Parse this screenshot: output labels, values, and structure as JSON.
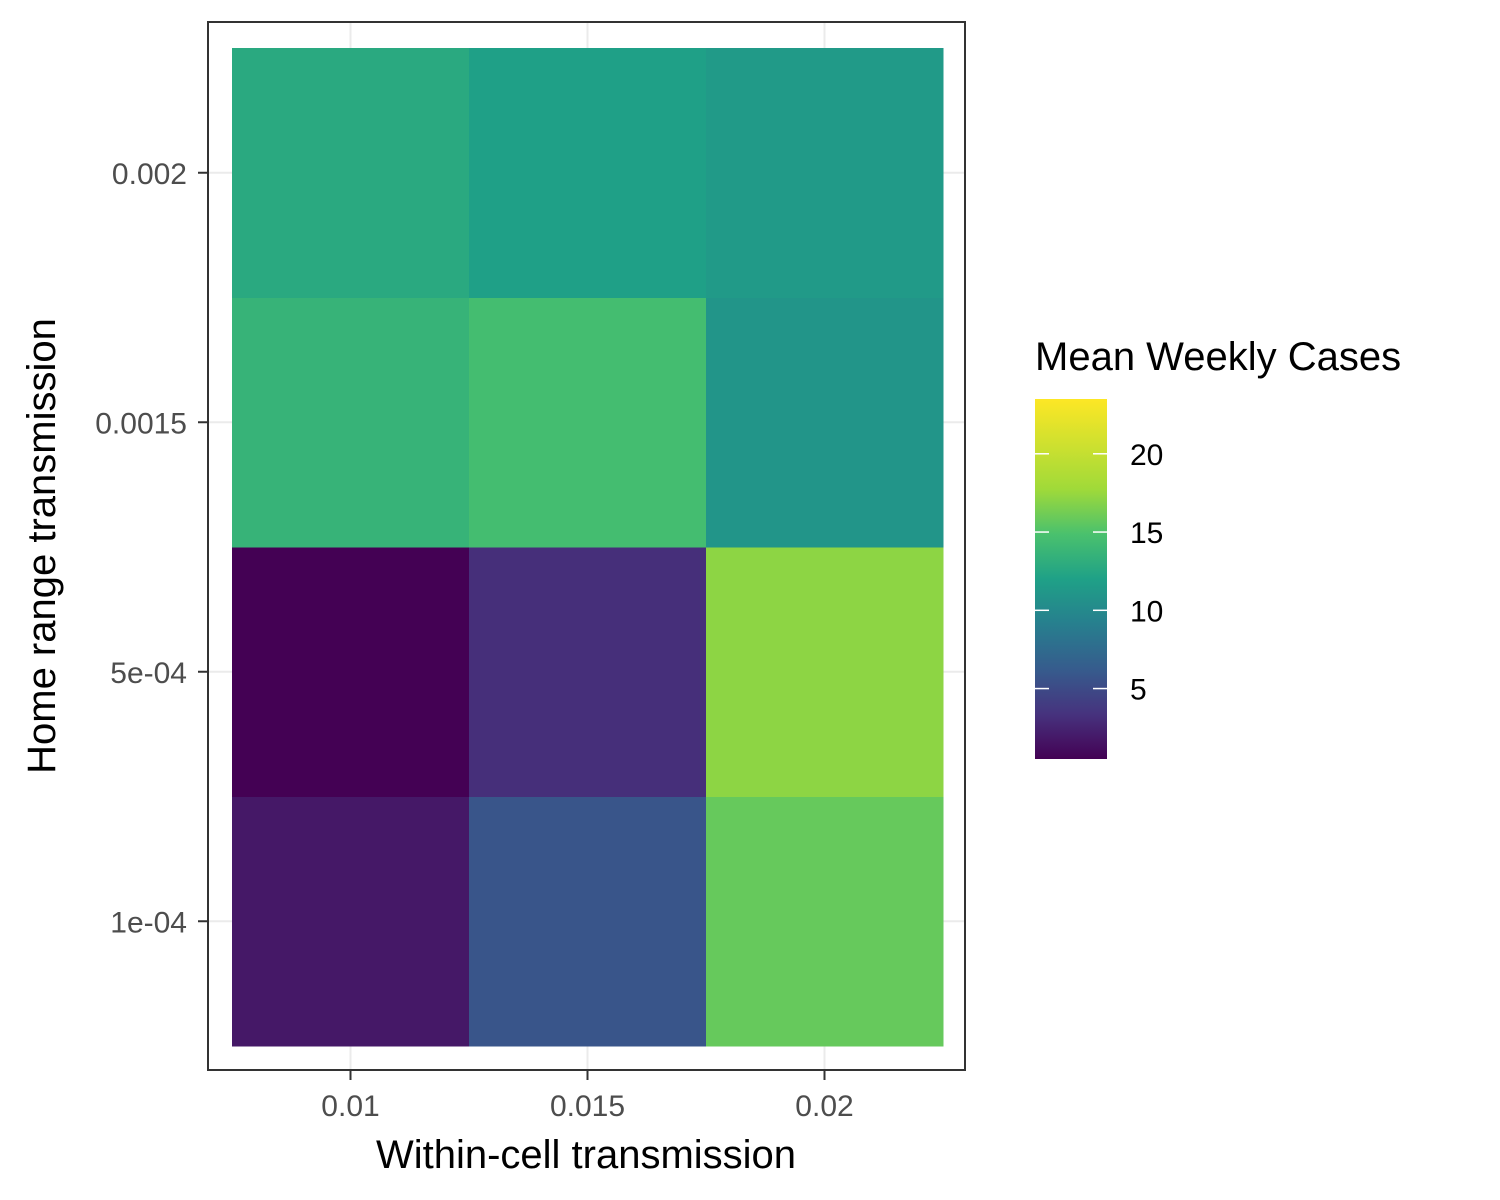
{
  "chart_data": {
    "type": "heatmap",
    "x_categories": [
      "0.01",
      "0.015",
      "0.02"
    ],
    "y_categories": [
      "1e-04",
      "5e-04",
      "0.0015",
      "0.002"
    ],
    "values": [
      [
        2.0,
        6.5,
        18.0
      ],
      [
        0.5,
        3.5,
        19.5
      ],
      [
        15.5,
        16.5,
        12.5
      ],
      [
        14.5,
        13.5,
        13.0
      ]
    ],
    "xlabel": "Within-cell transmission",
    "ylabel": "Home range transmission",
    "legend": {
      "title": "Mean Weekly Cases",
      "ticks": [
        5,
        10,
        15,
        20
      ],
      "tick_labels": [
        "5",
        "10",
        "15",
        "20"
      ],
      "range": [
        0.5,
        23.5
      ],
      "placement": "right",
      "colormap": "viridis"
    },
    "grid": true
  }
}
